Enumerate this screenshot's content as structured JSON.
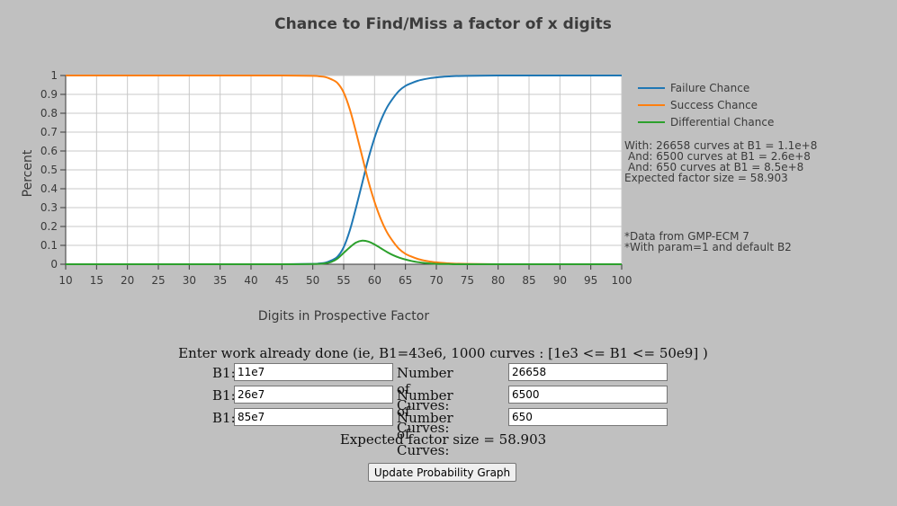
{
  "title": "Chance to Find/Miss a factor of x digits",
  "chart_data": {
    "type": "line",
    "title": "Chance to Find/Miss a factor of x digits",
    "xlabel": "Digits in Prospective Factor",
    "ylabel": "Percent",
    "xlim": [
      10,
      100
    ],
    "ylim": [
      0,
      1
    ],
    "grid": true,
    "legend_position": "right",
    "x_ticks": [
      "10",
      "15",
      "20",
      "25",
      "30",
      "35",
      "40",
      "45",
      "50",
      "55",
      "60",
      "65",
      "70",
      "75",
      "80",
      "85",
      "90",
      "95",
      "100"
    ],
    "y_ticks": [
      "0",
      "0.1",
      "0.2",
      "0.3",
      "0.4",
      "0.5",
      "0.6",
      "0.7",
      "0.8",
      "0.9",
      "1"
    ],
    "x": [
      10,
      15,
      20,
      25,
      30,
      35,
      40,
      45,
      50,
      51,
      52,
      53,
      54,
      55,
      56,
      57,
      58,
      59,
      60,
      61,
      62,
      63,
      64,
      65,
      66,
      67,
      68,
      69,
      70,
      71,
      72,
      73,
      75,
      80,
      85,
      90,
      95,
      100
    ],
    "series": [
      {
        "name": "Failure Chance",
        "color": "#1f77b4",
        "values": [
          0,
          0,
          0,
          0,
          0,
          0,
          0,
          0,
          0.002,
          0.004,
          0.008,
          0.02,
          0.04,
          0.09,
          0.18,
          0.3,
          0.43,
          0.56,
          0.67,
          0.76,
          0.83,
          0.88,
          0.92,
          0.945,
          0.96,
          0.972,
          0.98,
          0.986,
          0.99,
          0.993,
          0.995,
          0.997,
          0.998,
          1,
          1,
          1,
          1,
          1
        ]
      },
      {
        "name": "Success Chance",
        "color": "#ff7f0e",
        "values": [
          1,
          1,
          1,
          1,
          1,
          1,
          1,
          1,
          0.998,
          0.996,
          0.992,
          0.98,
          0.96,
          0.91,
          0.82,
          0.7,
          0.57,
          0.44,
          0.33,
          0.24,
          0.17,
          0.12,
          0.08,
          0.055,
          0.04,
          0.028,
          0.02,
          0.014,
          0.01,
          0.007,
          0.005,
          0.003,
          0.002,
          0,
          0,
          0,
          0,
          0
        ]
      },
      {
        "name": "Differential Chance",
        "color": "#2ca02c",
        "values": [
          0,
          0,
          0,
          0,
          0,
          0,
          0,
          0,
          0.001,
          0.002,
          0.005,
          0.012,
          0.03,
          0.06,
          0.09,
          0.115,
          0.125,
          0.12,
          0.105,
          0.085,
          0.065,
          0.048,
          0.035,
          0.025,
          0.017,
          0.011,
          0.007,
          0.004,
          0.002,
          0.001,
          0.001,
          0,
          0,
          0,
          0,
          0,
          0,
          0
        ]
      }
    ]
  },
  "notes": {
    "with_line": "With: 26658 curves at B1 = 1.1e+8",
    "and_line_1": "And: 6500 curves at B1 = 2.6e+8",
    "and_line_2": "And: 650 curves at B1 = 8.5e+8",
    "expected_line": "Expected factor size = 58.903",
    "data_source": "*Data from GMP-ECM 7",
    "param_note": "*With param=1 and default B2"
  },
  "form": {
    "intro": "Enter work already done (ie, B1=43e6, 1000 curves : [1e3 <= B1 <= 50e9] )",
    "b1_label": "B1:",
    "curves_label": "Number of Curves:",
    "rows": [
      {
        "b1": "11e7",
        "curves": "26658"
      },
      {
        "b1": "26e7",
        "curves": "6500"
      },
      {
        "b1": "85e7",
        "curves": "650"
      }
    ],
    "expected": "Expected factor size = 58.903",
    "update_button": "Update Probability Graph"
  }
}
